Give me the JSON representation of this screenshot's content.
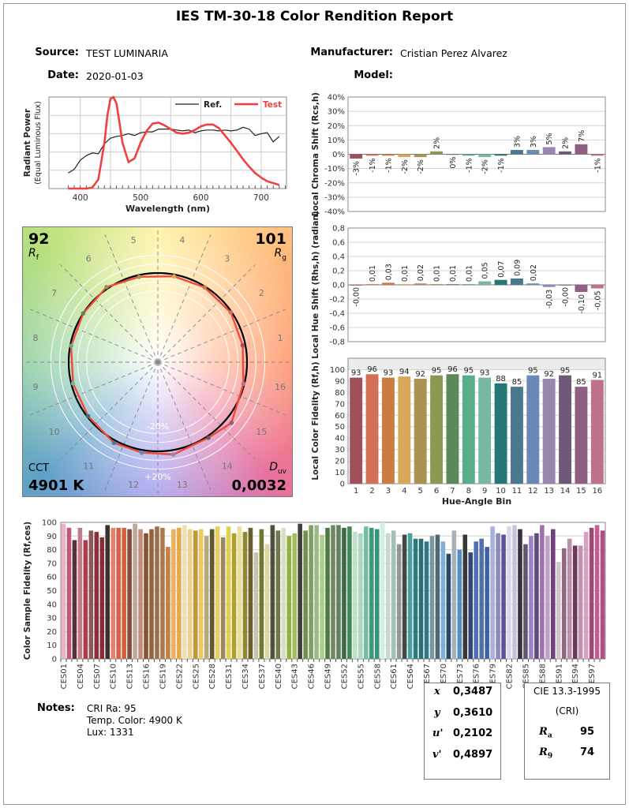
{
  "header": {
    "title": "IES TM-30-18 Color Rendition Report",
    "source_label": "Source:",
    "source_value": "TEST LUMINARIA",
    "date_label": "Date:",
    "date_value": "2020-01-03",
    "manufacturer_label": "Manufacturer:",
    "manufacturer_value": "Cristian Perez Alvarez",
    "model_label": "Model:"
  },
  "vector_graphic": {
    "rf_value": "92",
    "rf_label": "R",
    "rf_sub": "f",
    "rg_value": "101",
    "rg_label": "R",
    "rg_sub": "g",
    "cct_label": "CCT",
    "cct_value": "4901 K",
    "duv_label": "D",
    "duv_sub": "uv",
    "duv_value": "0,0032",
    "ring_inner_label": "-20%",
    "ring_outer_label": "+20%",
    "bin_labels": [
      "1",
      "2",
      "3",
      "4",
      "5",
      "6",
      "7",
      "8",
      "9",
      "10",
      "11",
      "12",
      "13",
      "14",
      "15",
      "16"
    ],
    "reference_color": "#000000",
    "test_color": "#f04a3a"
  },
  "hue_bin_colors": [
    "#a0505a",
    "#d47058",
    "#cc7c40",
    "#d8a858",
    "#a89450",
    "#8a9a50",
    "#5a8a58",
    "#58ae88",
    "#78b8a0",
    "#267878",
    "#4a7890",
    "#6a88b8",
    "#9888b0",
    "#705878",
    "#906080",
    "#c07088"
  ],
  "chart_data": [
    {
      "id": "spectrum",
      "type": "line",
      "xlabel": "Wavelength (nm)",
      "ylabel": "Radiant Power",
      "ylabel2": "(Equal Luminous Flux)",
      "xlim": [
        348,
        742
      ],
      "ylim": [
        0,
        1
      ],
      "xticks": [
        400,
        500,
        600,
        700
      ],
      "grid": true,
      "legend_position": "top-right",
      "series": [
        {
          "name": "Ref.",
          "color": "#222222",
          "x": [
            380,
            390,
            400,
            410,
            420,
            430,
            440,
            450,
            460,
            470,
            480,
            490,
            500,
            510,
            520,
            530,
            540,
            550,
            560,
            570,
            580,
            590,
            600,
            610,
            620,
            630,
            640,
            650,
            660,
            670,
            680,
            690,
            700,
            710,
            720,
            730
          ],
          "y": [
            0.17,
            0.21,
            0.31,
            0.36,
            0.39,
            0.38,
            0.49,
            0.55,
            0.57,
            0.58,
            0.6,
            0.58,
            0.61,
            0.62,
            0.62,
            0.65,
            0.65,
            0.65,
            0.64,
            0.63,
            0.64,
            0.61,
            0.63,
            0.64,
            0.64,
            0.63,
            0.64,
            0.63,
            0.64,
            0.67,
            0.65,
            0.58,
            0.6,
            0.61,
            0.51,
            0.57
          ]
        },
        {
          "name": "Test",
          "color": "#f04040",
          "x": [
            380,
            390,
            400,
            410,
            420,
            430,
            440,
            445,
            450,
            455,
            460,
            465,
            470,
            480,
            490,
            500,
            510,
            520,
            530,
            540,
            550,
            560,
            570,
            580,
            590,
            600,
            610,
            620,
            630,
            640,
            650,
            660,
            670,
            680,
            690,
            700,
            710,
            720,
            730
          ],
          "y": [
            0,
            0,
            0,
            0,
            0.01,
            0.1,
            0.5,
            0.8,
            0.98,
            1.0,
            0.93,
            0.72,
            0.5,
            0.29,
            0.33,
            0.5,
            0.63,
            0.71,
            0.72,
            0.69,
            0.65,
            0.61,
            0.6,
            0.61,
            0.64,
            0.68,
            0.7,
            0.7,
            0.66,
            0.58,
            0.5,
            0.41,
            0.32,
            0.24,
            0.17,
            0.12,
            0.08,
            0.06,
            0.04
          ]
        }
      ]
    },
    {
      "id": "chroma_shift",
      "type": "bar",
      "ylabel": "Local Chroma Shift (Rcs,h)",
      "ylim": [
        -40,
        40
      ],
      "ytick_labels": [
        "40%",
        "30%",
        "20%",
        "10%",
        "0%",
        "-10%",
        "-20%",
        "-30%",
        "-40%"
      ],
      "categories": [
        "1",
        "2",
        "3",
        "4",
        "5",
        "6",
        "7",
        "8",
        "9",
        "10",
        "11",
        "12",
        "13",
        "14",
        "15",
        "16"
      ],
      "values": [
        -3,
        -1,
        -1,
        -2,
        -2,
        2,
        0,
        -1,
        -2,
        -1,
        3,
        3,
        5,
        2,
        7,
        -1
      ],
      "data_labels": [
        "-3%",
        "-1%",
        "-1%",
        "-2%",
        "-2%",
        "2%",
        "0%",
        "-1%",
        "-2%",
        "-1%",
        "3%",
        "3%",
        "5%",
        "2%",
        "7%",
        "-1%"
      ],
      "grid": true
    },
    {
      "id": "hue_shift",
      "type": "bar",
      "ylabel": "Local Hue Shift (Rhs,h) (radian)",
      "ylim": [
        -0.8,
        0.8
      ],
      "ytick_labels": [
        "0,8",
        "0,6",
        "0,4",
        "0,2",
        "0,0",
        "-0,2",
        "-0,4",
        "-0,6",
        "-0,8"
      ],
      "categories": [
        "1",
        "2",
        "3",
        "4",
        "5",
        "6",
        "7",
        "8",
        "9",
        "10",
        "11",
        "12",
        "13",
        "14",
        "15",
        "16"
      ],
      "values": [
        -0.0,
        0.01,
        0.03,
        0.01,
        0.02,
        0.01,
        0.01,
        0.01,
        0.05,
        0.07,
        0.09,
        0.02,
        -0.03,
        -0.0,
        -0.1,
        -0.05
      ],
      "data_labels": [
        "-0,00",
        "0,01",
        "0,03",
        "0,01",
        "0,02",
        "0,01",
        "0,01",
        "0,01",
        "0,05",
        "0,07",
        "0,09",
        "0,02",
        "-0,03",
        "-0,00",
        "-0,10",
        "-0,05"
      ],
      "grid": true
    },
    {
      "id": "local_fidelity",
      "type": "bar",
      "ylabel": "Local Color Fidelity (Rf,h)",
      "xlabel": "Hue-Angle Bin",
      "ylim": [
        0,
        110
      ],
      "yticks": [
        0,
        10,
        20,
        30,
        40,
        50,
        60,
        70,
        80,
        90,
        100
      ],
      "categories": [
        "1",
        "2",
        "3",
        "4",
        "5",
        "6",
        "7",
        "8",
        "9",
        "10",
        "11",
        "12",
        "13",
        "14",
        "15",
        "16"
      ],
      "values": [
        93,
        96,
        93,
        94,
        92,
        95,
        96,
        95,
        93,
        88,
        85,
        95,
        92,
        95,
        85,
        91
      ],
      "grid": true
    },
    {
      "id": "ces_fidelity",
      "type": "bar",
      "ylabel": "Color Sample Fidelity (Rf,ces)",
      "ylim": [
        0,
        100
      ],
      "yticks": [
        0,
        10,
        20,
        30,
        40,
        50,
        60,
        70,
        80,
        90,
        100
      ],
      "tick_labels": [
        "CES01",
        "CES04",
        "CES07",
        "CES10",
        "CES13",
        "CES16",
        "CES19",
        "CES22",
        "CES25",
        "CES28",
        "CES31",
        "CES34",
        "CES37",
        "CES40",
        "CES43",
        "CES46",
        "CES49",
        "CES52",
        "CES55",
        "CES58",
        "CES61",
        "CES64",
        "CES67",
        "CES70",
        "CES73",
        "CES76",
        "CES79",
        "CES82",
        "CES85",
        "CES88",
        "CES91",
        "CES94",
        "CES97"
      ],
      "values": [
        99,
        96,
        87,
        96,
        87,
        94,
        93,
        89,
        98,
        96,
        96,
        96,
        95,
        99,
        95,
        92,
        95,
        97,
        96,
        82,
        95,
        96,
        98,
        95,
        94,
        95,
        90,
        95,
        97,
        89,
        97,
        92,
        97,
        93,
        96,
        78,
        95,
        84,
        98,
        94,
        96,
        90,
        92,
        99,
        94,
        98,
        98,
        91,
        96,
        98,
        98,
        96,
        97,
        93,
        92,
        97,
        96,
        95,
        100,
        92,
        94,
        84,
        91,
        92,
        88,
        88,
        86,
        90,
        91,
        86,
        77,
        94,
        80,
        91,
        78,
        86,
        88,
        82,
        97,
        92,
        91,
        97,
        98,
        95,
        84,
        90,
        92,
        98,
        90,
        95,
        71,
        81,
        88,
        83,
        83,
        93,
        96,
        98,
        94
      ],
      "colors": [
        "#e8b4bf",
        "#c0587a",
        "#5a3038",
        "#c07b85",
        "#b03a4e",
        "#8a5a58",
        "#8e2e3c",
        "#8a2a34",
        "#3a3030",
        "#e8806a",
        "#d86048",
        "#d06040",
        "#8a4a38",
        "#c0a898",
        "#c09078",
        "#8a5030",
        "#9a6038",
        "#9a7050",
        "#b07a48",
        "#c88040",
        "#f0b060",
        "#e8a848",
        "#f0e0b0",
        "#f0d090",
        "#c09838",
        "#f0c860",
        "#b8a880",
        "#605830",
        "#e8d060",
        "#9a8860",
        "#e0d050",
        "#b0a030",
        "#e8e098",
        "#908830",
        "#686030",
        "#c8c4a8",
        "#707830",
        "#d8d8a0",
        "#505040",
        "#707850",
        "#d8e0c0",
        "#90b040",
        "#a0c060",
        "#404038",
        "#709050",
        "#80a060",
        "#a0b888",
        "#a8d088",
        "#507840",
        "#708868",
        "#608060",
        "#3a6a40",
        "#408858",
        "#c0e0c8",
        "#a8d8c0",
        "#70c0a0",
        "#409878",
        "#309878",
        "#d0f0e0",
        "#c8d8d0",
        "#a0c0b8",
        "#909898",
        "#404848",
        "#48a0a0",
        "#307880",
        "#287078",
        "#307888",
        "#7898a0",
        "#506870",
        "#80b0d8",
        "#284868",
        "#a8b0b8",
        "#5090c8",
        "#383838",
        "#304878",
        "#5070b8",
        "#5070a8",
        "#4060a8",
        "#a8b0e0",
        "#9088c0",
        "#6050a0",
        "#d8d8e8",
        "#c8c0e0",
        "#383040",
        "#605870",
        "#a080c8",
        "#604880",
        "#a070b0",
        "#c0a0c8",
        "#704080",
        "#d0c8c8",
        "#906880",
        "#b890a8",
        "#703858",
        "#c090b0",
        "#d8a0c0",
        "#a04870",
        "#c06090",
        "#b05080"
      ],
      "grid": true
    }
  ],
  "notes": {
    "label": "Notes:",
    "lines": [
      "CRI Ra: 95",
      "Temp. Color: 4900 K",
      "Lux: 1331"
    ]
  },
  "chromaticity": {
    "rows": [
      {
        "label": "x",
        "value": "0,3487"
      },
      {
        "label": "y",
        "value": "0,3610"
      },
      {
        "label": "u'",
        "value": "0,2102"
      },
      {
        "label": "v'",
        "value": "0,4897"
      }
    ]
  },
  "cri": {
    "title": "CIE 13.3-1995",
    "subtitle": "(CRI)",
    "ra_label": "R",
    "ra_sub": "a",
    "ra_value": "95",
    "r9_label": "R",
    "r9_sub": "9",
    "r9_value": "74"
  }
}
